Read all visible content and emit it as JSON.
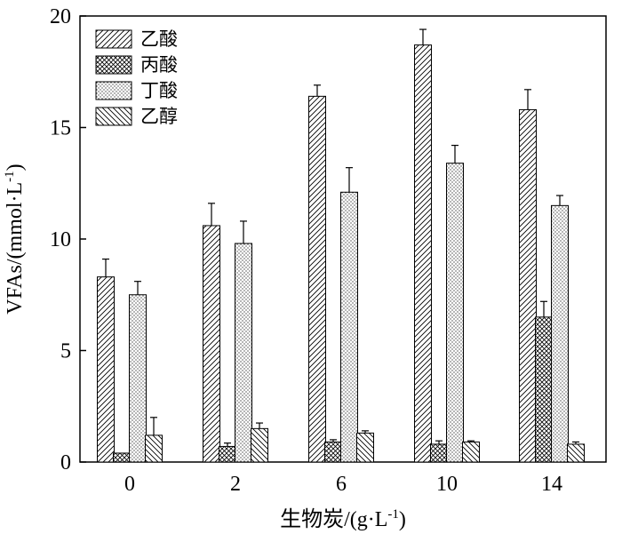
{
  "chart_data": {
    "type": "bar",
    "xlabel": "生物炭/(g·L",
    "xlabel_sup": "-1",
    "xlabel_tail": ")",
    "ylabel": "VFAs/(mmol·L",
    "ylabel_sup": "-1",
    "ylabel_tail": ")",
    "categories": [
      "0",
      "2",
      "6",
      "10",
      "14"
    ],
    "ylim": [
      0,
      20
    ],
    "yticks": [
      "0",
      "5",
      "10",
      "15",
      "20"
    ],
    "grid": false,
    "legend_position": "top-left",
    "series": [
      {
        "name": "乙酸",
        "pattern": "diag-hatch",
        "values": [
          8.3,
          10.6,
          16.4,
          18.7,
          15.8
        ],
        "errors": [
          0.8,
          1.0,
          0.5,
          0.7,
          0.9
        ]
      },
      {
        "name": "丙酸",
        "pattern": "cross-hatch",
        "values": [
          0.4,
          0.7,
          0.9,
          0.8,
          6.5
        ],
        "errors": [
          0.0,
          0.15,
          0.1,
          0.15,
          0.7
        ]
      },
      {
        "name": "丁酸",
        "pattern": "dots",
        "values": [
          7.5,
          9.8,
          12.1,
          13.4,
          11.5
        ],
        "errors": [
          0.6,
          1.0,
          1.1,
          0.8,
          0.45
        ]
      },
      {
        "name": "乙醇",
        "pattern": "back-hatch",
        "values": [
          1.2,
          1.5,
          1.3,
          0.9,
          0.8
        ],
        "errors": [
          0.8,
          0.25,
          0.1,
          0.05,
          0.1
        ]
      }
    ]
  }
}
